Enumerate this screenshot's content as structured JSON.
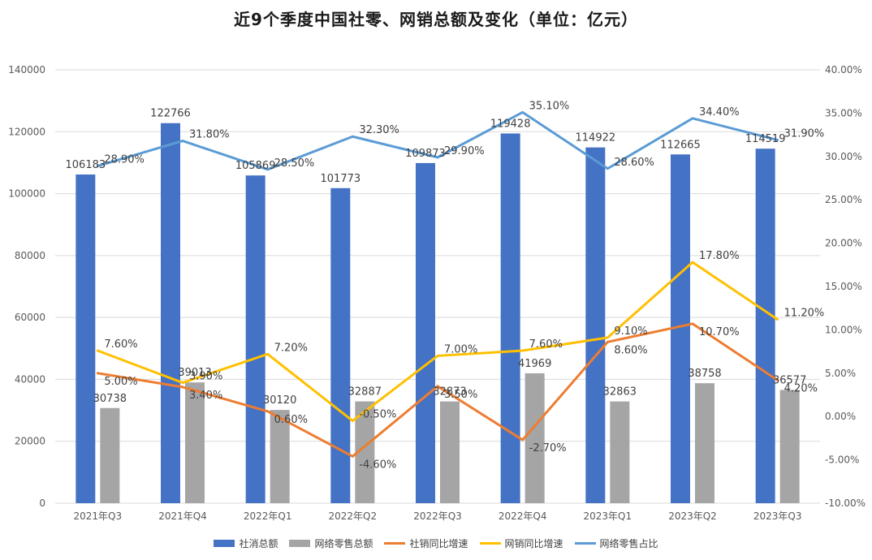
{
  "title": "近9个季度中国社零、网销总额及变化（单位：亿元）",
  "legend": {
    "s1": "社消总额",
    "s2": "网络零售总额",
    "s3": "社销同比增速",
    "s4": "网销同比增速",
    "s5": "网络零售占比"
  },
  "colors": {
    "s1": "#4472C4",
    "s2": "#A5A5A5",
    "s3": "#ED7D31",
    "s4": "#FFC000",
    "s5": "#5B9BD5",
    "grid": "#D9D9D9",
    "tick": "#595959",
    "label": "#404040"
  },
  "chart_data": {
    "type": "bar",
    "categories": [
      "2021年Q3",
      "2021年Q4",
      "2022年Q1",
      "2022年Q2",
      "2022年Q3",
      "2022年Q4",
      "2023年Q1",
      "2023年Q2",
      "2023年Q3"
    ],
    "y_left": {
      "ylim": [
        0,
        140000
      ],
      "ticks": [
        "0",
        "20000",
        "40000",
        "60000",
        "80000",
        "100000",
        "120000",
        "140000"
      ]
    },
    "y_right": {
      "ylim": [
        -10,
        40
      ],
      "ticks": [
        "-10.00%",
        "-5.00%",
        "0.00%",
        "5.00%",
        "10.00%",
        "15.00%",
        "20.00%",
        "25.00%",
        "30.00%",
        "35.00%",
        "40.00%"
      ]
    },
    "grid": true,
    "legend_position": "bottom",
    "series": [
      {
        "name": "社消总额",
        "type": "bar",
        "axis": "left",
        "values": [
          106183,
          122766,
          105869,
          101773,
          109873,
          119428,
          114922,
          112665,
          114519
        ],
        "labels": [
          "106183",
          "122766",
          "105869",
          "101773",
          "109873",
          "119428",
          "114922",
          "112665",
          "114519"
        ]
      },
      {
        "name": "网络零售总额",
        "type": "bar",
        "axis": "left",
        "values": [
          30738,
          39013,
          30120,
          32887,
          32873,
          41969,
          32863,
          38758,
          36577
        ],
        "labels": [
          "30738",
          "39013",
          "30120",
          "32887",
          "32873",
          "41969",
          "32863",
          "38758",
          "36577"
        ]
      },
      {
        "name": "社销同比增速",
        "type": "line",
        "axis": "right",
        "values": [
          5.0,
          3.4,
          0.6,
          -4.6,
          3.5,
          -2.7,
          8.6,
          10.7,
          4.2
        ],
        "labels": [
          "5.00%",
          "3.40%",
          "0.60%",
          "-4.60%",
          "3.50%",
          "-2.70%",
          "8.60%",
          "10.70%",
          "4.20%"
        ]
      },
      {
        "name": "网销同比增速",
        "type": "line",
        "axis": "right",
        "values": [
          7.6,
          3.9,
          7.2,
          -0.5,
          7.0,
          7.6,
          9.1,
          17.8,
          11.2
        ],
        "labels": [
          "7.60%",
          "3.90%",
          "7.20%",
          "-0.50%",
          "7.00%",
          "7.60%",
          "9.10%",
          "17.80%",
          "11.20%"
        ]
      },
      {
        "name": "网络零售占比",
        "type": "line",
        "axis": "right",
        "values": [
          28.9,
          31.8,
          28.5,
          32.3,
          29.9,
          35.1,
          28.6,
          34.4,
          31.9
        ],
        "labels": [
          "28.90%",
          "31.80%",
          "28.50%",
          "32.30%",
          "29.90%",
          "35.10%",
          "28.60%",
          "34.40%",
          "31.90%"
        ]
      }
    ]
  }
}
